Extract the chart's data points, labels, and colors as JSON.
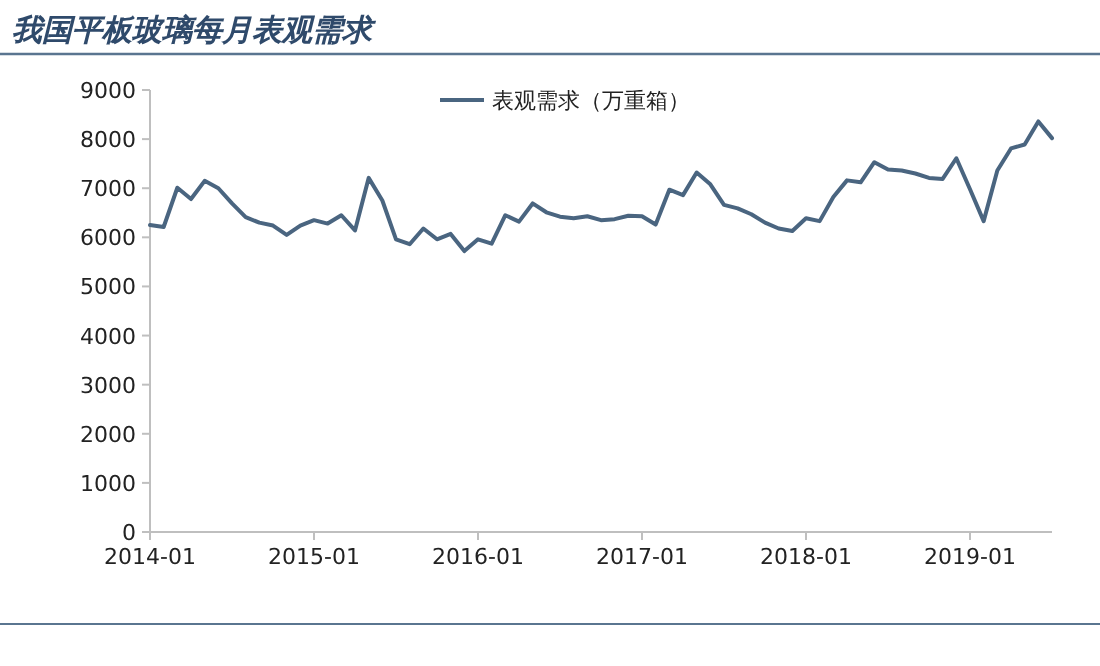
{
  "chart_data": {
    "type": "line",
    "title": "我国平板玻璃每月表观需求",
    "x": [
      "2014-01",
      "2014-02",
      "2014-03",
      "2014-04",
      "2014-05",
      "2014-06",
      "2014-07",
      "2014-08",
      "2014-09",
      "2014-10",
      "2014-11",
      "2014-12",
      "2015-01",
      "2015-02",
      "2015-03",
      "2015-04",
      "2015-05",
      "2015-06",
      "2015-07",
      "2015-08",
      "2015-09",
      "2015-10",
      "2015-11",
      "2015-12",
      "2016-01",
      "2016-02",
      "2016-03",
      "2016-04",
      "2016-05",
      "2016-06",
      "2016-07",
      "2016-08",
      "2016-09",
      "2016-10",
      "2016-11",
      "2016-12",
      "2017-01",
      "2017-02",
      "2017-03",
      "2017-04",
      "2017-05",
      "2017-06",
      "2017-07",
      "2017-08",
      "2017-09",
      "2017-10",
      "2017-11",
      "2017-12",
      "2018-01",
      "2018-02",
      "2018-03",
      "2018-04",
      "2018-05",
      "2018-06",
      "2018-07",
      "2018-08",
      "2018-09",
      "2018-10",
      "2018-11",
      "2018-12",
      "2019-01",
      "2019-02",
      "2019-03",
      "2019-04",
      "2019-05",
      "2019-06",
      "2019-07"
    ],
    "series": [
      {
        "name": "表观需求（万重箱）",
        "color": "#4a6580",
        "values": [
          6250,
          6210,
          7010,
          6780,
          7150,
          7000,
          6690,
          6410,
          6300,
          6240,
          6050,
          6240,
          6350,
          6280,
          6450,
          6140,
          7210,
          6750,
          5960,
          5860,
          6180,
          5960,
          6070,
          5720,
          5960,
          5870,
          6450,
          6320,
          6690,
          6510,
          6420,
          6390,
          6430,
          6350,
          6370,
          6440,
          6430,
          6260,
          6970,
          6860,
          7320,
          7080,
          6660,
          6590,
          6470,
          6300,
          6180,
          6130,
          6390,
          6330,
          6820,
          7160,
          7120,
          7530,
          7380,
          7360,
          7300,
          7210,
          7190,
          7610,
          6980,
          6330,
          7360,
          7810,
          7890,
          8360,
          8020
        ]
      }
    ],
    "xlim": [
      "2014-01",
      "2019-07"
    ],
    "xticks": [
      {
        "value": "2014-01",
        "label": "2014-01"
      },
      {
        "value": "2015-01",
        "label": "2015-01"
      },
      {
        "value": "2016-01",
        "label": "2016-01"
      },
      {
        "value": "2017-01",
        "label": "2017-01"
      },
      {
        "value": "2018-01",
        "label": "2018-01"
      },
      {
        "value": "2019-01",
        "label": "2019-01"
      }
    ],
    "ylim": [
      0,
      9000
    ],
    "yticks": [
      0,
      1000,
      2000,
      3000,
      4000,
      5000,
      6000,
      7000,
      8000,
      9000
    ],
    "grid": false,
    "legend": "top",
    "marker": "none",
    "line_style": "solid"
  }
}
